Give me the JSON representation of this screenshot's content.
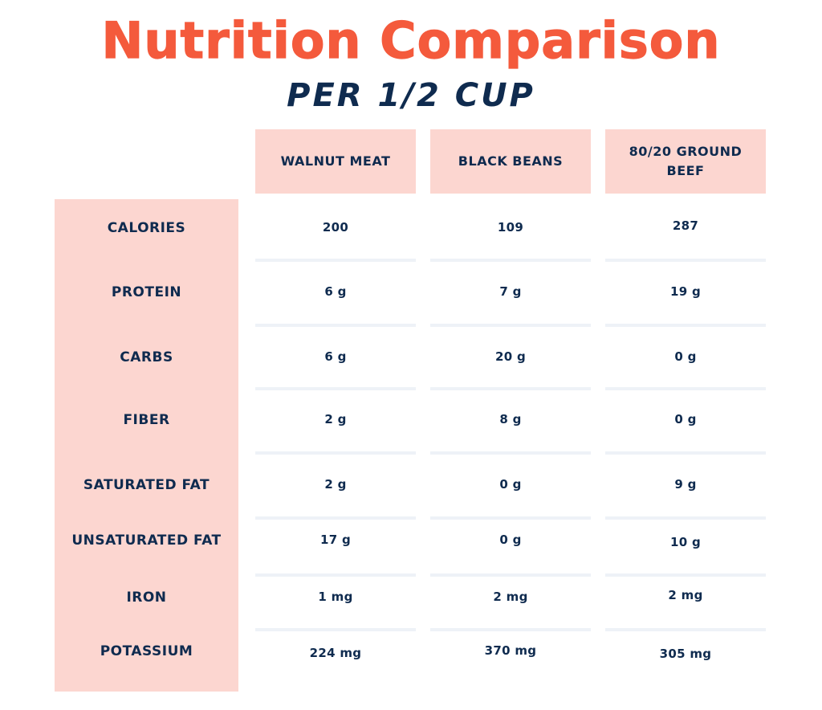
{
  "title": "Nutrition Comparison",
  "subtitle": "PER 1/2 CUP",
  "chart_data": {
    "type": "table",
    "title": "Nutrition Comparison",
    "subtitle": "PER 1/2 CUP",
    "columns": [
      "WALNUT MEAT",
      "BLACK BEANS",
      "80/20 GROUND BEEF"
    ],
    "rows": [
      {
        "label": "CALORIES",
        "values": [
          "200",
          "109",
          "287"
        ]
      },
      {
        "label": "PROTEIN",
        "values": [
          "6 g",
          "7 g",
          "19 g"
        ]
      },
      {
        "label": "CARBS",
        "values": [
          "6 g",
          "20 g",
          "0 g"
        ]
      },
      {
        "label": "FIBER",
        "values": [
          "2 g",
          "8 g",
          "0 g"
        ]
      },
      {
        "label": "SATURATED FAT",
        "values": [
          "2 g",
          "0 g",
          "9 g"
        ]
      },
      {
        "label": "UNSATURATED FAT",
        "values": [
          "17 g",
          "0 g",
          "10 g"
        ]
      },
      {
        "label": "IRON",
        "values": [
          "1 mg",
          "2 mg",
          "2 mg"
        ]
      },
      {
        "label": "POTASSIUM",
        "values": [
          "224 mg",
          "370 mg",
          "305 mg"
        ]
      }
    ]
  },
  "colors": {
    "accent": "#f45a3c",
    "header_fill": "#fcd6d0",
    "text": "#0f2b4f",
    "separator": "#eef2f7"
  }
}
